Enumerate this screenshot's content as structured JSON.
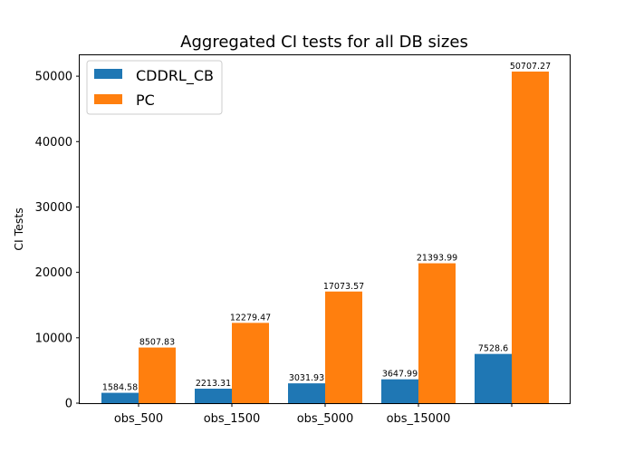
{
  "chart_data": {
    "type": "bar",
    "title": "Aggregated CI tests for all DB sizes",
    "xlabel": "",
    "ylabel": "CI Tests",
    "categories": [
      "obs_500",
      "obs_1500",
      "obs_5000",
      "obs_15000",
      ""
    ],
    "series": [
      {
        "name": "CDDRL_CB",
        "color": "#1f77b4",
        "values": [
          1584.58,
          2213.31,
          3031.93,
          3647.99,
          7528.6
        ],
        "labels": [
          "1584.58",
          "2213.31",
          "3031.93",
          "3647.99",
          "7528.6"
        ]
      },
      {
        "name": "PC",
        "color": "#ff7f0e",
        "values": [
          8507.83,
          12279.47,
          17073.57,
          21393.99,
          50707.27
        ],
        "labels": [
          "8507.83",
          "12279.47",
          "17073.57",
          "21393.99",
          "50707.27"
        ]
      }
    ],
    "yticks": [
      0,
      10000,
      20000,
      30000,
      40000,
      50000
    ],
    "ylim": [
      0,
      53200
    ],
    "grid": false,
    "legend": "upper-left"
  }
}
